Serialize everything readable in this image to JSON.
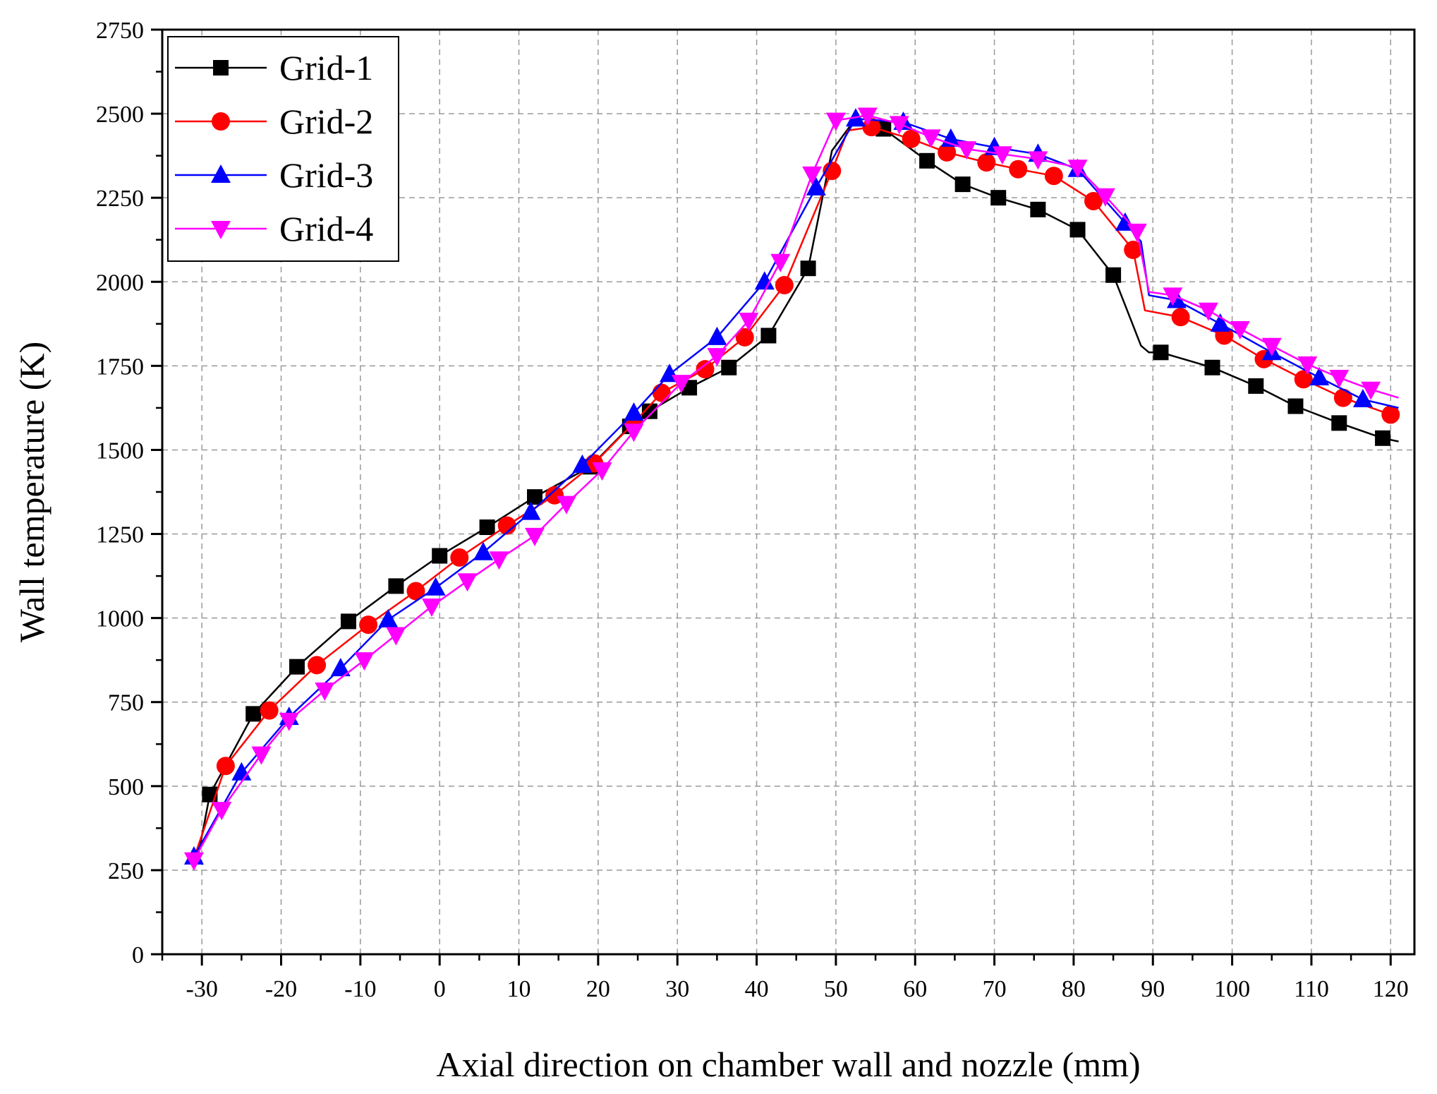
{
  "chart_data": {
    "type": "line",
    "title": "",
    "xlabel": "Axial direction on chamber wall and nozzle (mm)",
    "ylabel": "Wall temperature (K)",
    "xlim": [
      -35,
      123
    ],
    "ylim": [
      0,
      2750
    ],
    "xticks": [
      -30,
      -20,
      -10,
      0,
      10,
      20,
      30,
      40,
      50,
      60,
      70,
      80,
      90,
      100,
      110,
      120
    ],
    "yticks": [
      0,
      250,
      500,
      750,
      1000,
      1250,
      1500,
      1750,
      2000,
      2250,
      2500,
      2750
    ],
    "grid": true,
    "legend_position": "top-left",
    "series": [
      {
        "name": "Grid-1",
        "color": "#000000",
        "marker": "square",
        "x": [
          -30.5,
          -29,
          -23.5,
          -18,
          -11.5,
          -5.5,
          0,
          6,
          12,
          19,
          24,
          26.5,
          31.5,
          36.5,
          41.5,
          46.5,
          49.5,
          52,
          56,
          61.5,
          66,
          70.5,
          75.5,
          80.5,
          85,
          86.5,
          88.5,
          89.5,
          91,
          97.5,
          103,
          108,
          113.5,
          119,
          121
        ],
        "y": [
          290,
          475,
          715,
          855,
          990,
          1095,
          1185,
          1270,
          1360,
          1450,
          1570,
          1615,
          1685,
          1745,
          1840,
          2040,
          2390,
          2470,
          2455,
          2360,
          2290,
          2250,
          2215,
          2155,
          2020,
          1930,
          1810,
          1790,
          1790,
          1745,
          1690,
          1630,
          1580,
          1535,
          1525
        ],
        "markers": [
          [
            -29,
            475
          ],
          [
            -23.5,
            715
          ],
          [
            -18,
            855
          ],
          [
            -11.5,
            990
          ],
          [
            -5.5,
            1095
          ],
          [
            0,
            1185
          ],
          [
            6,
            1270
          ],
          [
            12,
            1360
          ],
          [
            19,
            1450
          ],
          [
            24,
            1570
          ],
          [
            26.5,
            1615
          ],
          [
            31.5,
            1685
          ],
          [
            36.5,
            1745
          ],
          [
            41.5,
            1840
          ],
          [
            46.5,
            2040
          ],
          [
            56,
            2455
          ],
          [
            61.5,
            2360
          ],
          [
            66,
            2290
          ],
          [
            70.5,
            2250
          ],
          [
            75.5,
            2215
          ],
          [
            80.5,
            2155
          ],
          [
            85,
            2020
          ],
          [
            91,
            1790
          ],
          [
            97.5,
            1745
          ],
          [
            103,
            1690
          ],
          [
            108,
            1630
          ],
          [
            113.5,
            1580
          ],
          [
            119,
            1535
          ]
        ]
      },
      {
        "name": "Grid-2",
        "color": "#ff0000",
        "marker": "circle",
        "x": [
          -31,
          -27,
          -21.5,
          -15.5,
          -9,
          -3,
          2.5,
          8.5,
          14.5,
          19.5,
          24.5,
          28,
          33.5,
          38.5,
          43.5,
          49.5,
          51.5,
          54.5,
          59.5,
          64,
          69,
          73,
          77.5,
          82.5,
          87.5,
          89,
          93.5,
          99,
          104,
          109,
          114,
          120,
          121
        ],
        "y": [
          285,
          560,
          725,
          860,
          980,
          1080,
          1180,
          1275,
          1365,
          1460,
          1580,
          1670,
          1740,
          1835,
          1990,
          2330,
          2450,
          2460,
          2425,
          2385,
          2355,
          2335,
          2315,
          2240,
          2095,
          1915,
          1895,
          1840,
          1770,
          1710,
          1655,
          1605,
          1610
        ],
        "markers": [
          [
            -27,
            560
          ],
          [
            -21.5,
            725
          ],
          [
            -15.5,
            860
          ],
          [
            -9,
            980
          ],
          [
            -3,
            1080
          ],
          [
            2.5,
            1180
          ],
          [
            8.5,
            1275
          ],
          [
            14.5,
            1365
          ],
          [
            19.5,
            1460
          ],
          [
            24.5,
            1580
          ],
          [
            28,
            1670
          ],
          [
            33.5,
            1740
          ],
          [
            38.5,
            1835
          ],
          [
            43.5,
            1990
          ],
          [
            49.5,
            2330
          ],
          [
            54.5,
            2460
          ],
          [
            59.5,
            2425
          ],
          [
            64,
            2385
          ],
          [
            69,
            2355
          ],
          [
            73,
            2335
          ],
          [
            77.5,
            2315
          ],
          [
            82.5,
            2240
          ],
          [
            87.5,
            2095
          ],
          [
            93.5,
            1895
          ],
          [
            99,
            1840
          ],
          [
            104,
            1770
          ],
          [
            109,
            1710
          ],
          [
            114,
            1655
          ],
          [
            120,
            1605
          ]
        ]
      },
      {
        "name": "Grid-3",
        "color": "#0000ff",
        "marker": "triangle-up",
        "x": [
          -31,
          -25,
          -19,
          -12.5,
          -6.5,
          -0.5,
          5.5,
          11.5,
          18,
          24.5,
          29,
          35,
          41,
          47.5,
          52.5,
          58.5,
          64.5,
          70,
          75.5,
          80.5,
          86.5,
          88.5,
          89.5,
          93,
          98.5,
          105,
          111,
          116.5,
          121
        ],
        "y": [
          290,
          540,
          705,
          850,
          995,
          1090,
          1195,
          1315,
          1455,
          1610,
          1725,
          1835,
          2000,
          2280,
          2485,
          2475,
          2425,
          2400,
          2380,
          2335,
          2175,
          2120,
          1960,
          1945,
          1875,
          1790,
          1715,
          1650,
          1625
        ],
        "markers": [
          [
            -31,
            290
          ],
          [
            -25,
            540
          ],
          [
            -19,
            705
          ],
          [
            -12.5,
            850
          ],
          [
            -6.5,
            995
          ],
          [
            -0.5,
            1090
          ],
          [
            5.5,
            1195
          ],
          [
            11.5,
            1315
          ],
          [
            18,
            1455
          ],
          [
            24.5,
            1610
          ],
          [
            29,
            1725
          ],
          [
            35,
            1835
          ],
          [
            41,
            2000
          ],
          [
            47.5,
            2280
          ],
          [
            52.5,
            2485
          ],
          [
            58.5,
            2475
          ],
          [
            64.5,
            2425
          ],
          [
            70,
            2400
          ],
          [
            75.5,
            2380
          ],
          [
            80.5,
            2335
          ],
          [
            86.5,
            2175
          ],
          [
            93,
            1945
          ],
          [
            98.5,
            1875
          ],
          [
            105,
            1790
          ],
          [
            111,
            1715
          ],
          [
            116.5,
            1650
          ]
        ]
      },
      {
        "name": "Grid-4",
        "color": "#ff00ff",
        "marker": "triangle-down",
        "x": [
          -31,
          -27.5,
          -22.5,
          -19,
          -14.5,
          -9.5,
          -5.5,
          -1,
          3.5,
          7.5,
          12,
          16,
          20.5,
          24.5,
          30.5,
          35,
          39,
          43,
          47,
          50,
          54,
          58,
          62,
          66.5,
          71,
          75.5,
          80.5,
          84,
          88,
          89.5,
          92.5,
          97,
          101,
          105,
          109.5,
          113.5,
          117.5,
          121
        ],
        "y": [
          280,
          430,
          595,
          695,
          785,
          875,
          950,
          1035,
          1110,
          1175,
          1245,
          1340,
          1440,
          1555,
          1700,
          1780,
          1885,
          2060,
          2320,
          2480,
          2495,
          2470,
          2430,
          2395,
          2380,
          2365,
          2340,
          2255,
          2150,
          1970,
          1960,
          1915,
          1860,
          1810,
          1755,
          1715,
          1680,
          1655
        ],
        "markers": [
          [
            -31,
            280
          ],
          [
            -27.5,
            430
          ],
          [
            -22.5,
            595
          ],
          [
            -19,
            695
          ],
          [
            -14.5,
            785
          ],
          [
            -9.5,
            875
          ],
          [
            -5.5,
            950
          ],
          [
            -1,
            1035
          ],
          [
            3.5,
            1110
          ],
          [
            7.5,
            1175
          ],
          [
            12,
            1245
          ],
          [
            16,
            1340
          ],
          [
            20.5,
            1440
          ],
          [
            24.5,
            1555
          ],
          [
            30.5,
            1700
          ],
          [
            35,
            1780
          ],
          [
            39,
            1885
          ],
          [
            43,
            2060
          ],
          [
            47,
            2320
          ],
          [
            50,
            2480
          ],
          [
            54,
            2495
          ],
          [
            58,
            2470
          ],
          [
            62,
            2430
          ],
          [
            66.5,
            2395
          ],
          [
            71,
            2380
          ],
          [
            75.5,
            2365
          ],
          [
            80.5,
            2340
          ],
          [
            84,
            2255
          ],
          [
            88,
            2150
          ],
          [
            92.5,
            1960
          ],
          [
            97,
            1915
          ],
          [
            101,
            1860
          ],
          [
            105,
            1810
          ],
          [
            109.5,
            1755
          ],
          [
            113.5,
            1715
          ],
          [
            117.5,
            1680
          ]
        ]
      }
    ]
  }
}
